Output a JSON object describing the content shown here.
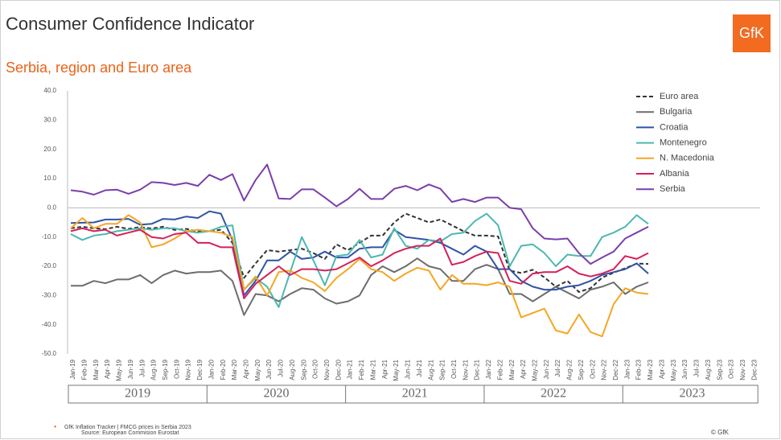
{
  "chart_data": {
    "type": "line",
    "title": "Consumer Confidence Indicator",
    "subtitle": "Serbia, region and Euro area",
    "logo": "GfK",
    "footnote": "GfK Inflation Tracker | FMCG prices in Serbia 2023",
    "source": "Source: European Commision Eurostat",
    "copyright": "© GfK",
    "years": [
      "2019",
      "2020",
      "2021",
      "2022",
      "2023"
    ],
    "categories": [
      "Jan-19",
      "Feb-19",
      "Mar-19",
      "Apr-19",
      "May-19",
      "Jun-19",
      "Jul-19",
      "Aug-19",
      "Sep-19",
      "Oct-19",
      "Nov-19",
      "Dec-19",
      "Jan-20",
      "Feb-20",
      "Mar-20",
      "Apr-20",
      "May-20",
      "Jun-20",
      "Jul-20",
      "Aug-20",
      "Sep-20",
      "Oct-20",
      "Nov-20",
      "Dec-20",
      "Jan-21",
      "Feb-21",
      "Mar-21",
      "Apr-21",
      "May-21",
      "Jun-21",
      "Jul-21",
      "Aug-21",
      "Sep-21",
      "Oct-21",
      "Nov-21",
      "Dec-21",
      "Jan-22",
      "Feb-22",
      "Mar-22",
      "Apr-22",
      "May-22",
      "Jun-22",
      "Jul-22",
      "Aug-22",
      "Sep-22",
      "Oct-22",
      "Nov-22",
      "Dec-22",
      "Jan-23",
      "Feb-23",
      "Mar-23",
      "Apr-23",
      "May-23",
      "Jun-23",
      "Jul-23",
      "Aug-23",
      "Sep-23",
      "Oct-23",
      "Nov-23",
      "Dec-23"
    ],
    "ylim": [
      -50,
      40
    ],
    "yticks": [
      {
        "value": 40,
        "label": "40.0"
      },
      {
        "value": 30,
        "label": "30.0"
      },
      {
        "value": 20,
        "label": "20.0"
      },
      {
        "value": 10,
        "label": "10.0"
      },
      {
        "value": 0,
        "label": "0.0"
      },
      {
        "value": -10,
        "label": "-10.0"
      },
      {
        "value": -20,
        "label": "-20.0"
      },
      {
        "value": -30,
        "label": "-30.0"
      },
      {
        "value": -40,
        "label": "-40.0"
      },
      {
        "value": -50,
        "label": "-50.0"
      }
    ],
    "grid": false,
    "legend": "top-right",
    "series": [
      {
        "name": "Euro area",
        "color": "#333333",
        "dashed": true,
        "values": [
          -7,
          -6.5,
          -7,
          -7.3,
          -6.5,
          -7.2,
          -6.6,
          -7.1,
          -6.5,
          -7.6,
          -7.2,
          -8.1,
          -8,
          -7.5,
          -12,
          -24,
          -19,
          -14.5,
          -15,
          -14.5,
          -14,
          -15.5,
          -17.5,
          -12.5,
          -14.5,
          -12,
          -9.5,
          -9.5,
          -5,
          -2,
          -3.5,
          -5,
          -4,
          -6,
          -8,
          -9.5,
          -9.5,
          -9.8,
          -21.5,
          -22.3,
          -21.2,
          -23.8,
          -27,
          -25,
          -28.8,
          -27.5,
          -23.9,
          -22.2,
          -20.7,
          -19.1,
          -19.2,
          null,
          null,
          null,
          null,
          null,
          null,
          null,
          null,
          null
        ]
      },
      {
        "name": "Bulgaria",
        "color": "#6d6d6d",
        "values": [
          -26.7,
          -26.7,
          -25,
          -25.8,
          -24.5,
          -24.5,
          -23,
          -25.8,
          -23,
          -21.5,
          -22.5,
          -22,
          -22,
          -21.5,
          -25,
          -36.7,
          -29.5,
          -30,
          -32,
          -29.5,
          -27.5,
          -28,
          -31,
          -32.8,
          -32,
          -30,
          -23,
          -20,
          -22,
          -20,
          -17.3,
          -20,
          -21,
          -25,
          -25,
          -21,
          -19.5,
          -21,
          -29.5,
          -29.5,
          -32,
          -29.5,
          -27,
          -29,
          -31,
          -28,
          -27,
          -25.5,
          -29.5,
          -27,
          -25.5,
          null,
          null,
          null,
          null,
          null,
          null,
          null,
          null,
          null
        ]
      },
      {
        "name": "Croatia",
        "color": "#2f54a5",
        "values": [
          -5.2,
          -5.1,
          -5,
          -4,
          -4,
          -3.8,
          -5.8,
          -5.5,
          -3.8,
          -4,
          -3,
          -3.5,
          -1.2,
          -2,
          -11,
          -30,
          -25,
          -18,
          -18,
          -15,
          -17.5,
          -17,
          -15,
          -17,
          -17,
          -14,
          -13.5,
          -13.5,
          -7.5,
          -10,
          -10.5,
          -11,
          -12,
          -14,
          -16,
          -13,
          -15,
          -21,
          -21,
          -25,
          -27,
          -28,
          -28,
          -27,
          -26.5,
          -25,
          -23,
          -22,
          -21,
          -19,
          -22.5,
          null,
          null,
          null,
          null,
          null,
          null,
          null,
          null,
          null
        ]
      },
      {
        "name": "Montenegro",
        "color": "#4db8b0",
        "values": [
          -9,
          -11,
          -9.5,
          -9,
          -8,
          -7.5,
          -7,
          -7.5,
          -7,
          -7,
          -8,
          -8.5,
          -8,
          -6.5,
          -6,
          -28,
          -24,
          -27,
          -34,
          -22,
          -10,
          -18,
          -26.5,
          -16.5,
          -16,
          -11,
          -17,
          -16,
          -7,
          -13,
          -14,
          -11,
          -11.5,
          -9,
          -8.5,
          -4.5,
          -2,
          -6,
          -20,
          -13,
          -12.5,
          -15.5,
          -20,
          -16,
          -16.5,
          -16.5,
          -10,
          -8.5,
          -6.5,
          -2.5,
          -5.5,
          null,
          null,
          null,
          null,
          null,
          null,
          null,
          null,
          null
        ]
      },
      {
        "name": "N. Macedonia",
        "color": "#f5a623",
        "values": [
          -7,
          -3.5,
          -7,
          -5.5,
          -5.5,
          -2.5,
          -5,
          -13.5,
          -12.5,
          -10.5,
          -8,
          -7.5,
          -8,
          -8.5,
          -10,
          -28,
          -23.5,
          -30,
          -22,
          -21.5,
          -24,
          -25.5,
          -28.5,
          -24,
          -21,
          -17.5,
          -21,
          -22,
          -25,
          -22.5,
          -20.5,
          -21.5,
          -28,
          -23,
          -26,
          -26,
          -26.5,
          -25.5,
          -27,
          -37.5,
          -36,
          -34.5,
          -42,
          -43,
          -36.5,
          -42.5,
          -44,
          -33,
          -27.5,
          -29,
          -29.5,
          null,
          null,
          null,
          null,
          null,
          null,
          null,
          null,
          null
        ]
      },
      {
        "name": "Albania",
        "color": "#d4215a",
        "values": [
          -8,
          -7,
          -8,
          -7.5,
          -9.5,
          -8.5,
          -7.5,
          -10,
          -10.5,
          -9,
          -8.5,
          -12,
          -12,
          -13.5,
          -13.5,
          -31,
          -26,
          -23,
          -20,
          -23,
          -21,
          -21,
          -21.5,
          -21,
          -19,
          -17,
          -20,
          -18,
          -15.5,
          -14,
          -13,
          -13,
          -10.5,
          -19.5,
          -18.5,
          -16.5,
          -15,
          -15.5,
          -25,
          -26,
          -22.5,
          -22,
          -22,
          -20,
          -22.5,
          -23.5,
          -22.5,
          -21,
          -16.5,
          -17.5,
          -15.5,
          null,
          null,
          null,
          null,
          null,
          null,
          null,
          null,
          null
        ]
      },
      {
        "name": "Serbia",
        "color": "#7b3fa8",
        "values": [
          6,
          5.5,
          4.5,
          6,
          6.2,
          4.8,
          6.2,
          8.8,
          8.5,
          7.8,
          8.5,
          7.5,
          11.3,
          9.5,
          11.5,
          2.5,
          9.5,
          14.8,
          3.2,
          3,
          6.3,
          6.3,
          3.5,
          0.5,
          3,
          6.5,
          3,
          3,
          6.5,
          7.5,
          6,
          8,
          6.5,
          2,
          3,
          2,
          3.5,
          3.5,
          0,
          -0.5,
          -7,
          -10.5,
          -10.8,
          -10.5,
          -15.5,
          -19.2,
          -17,
          -15,
          -10.5,
          -8.5,
          -6.5,
          null,
          null,
          null,
          null,
          null,
          null,
          null,
          null,
          null
        ]
      }
    ]
  }
}
